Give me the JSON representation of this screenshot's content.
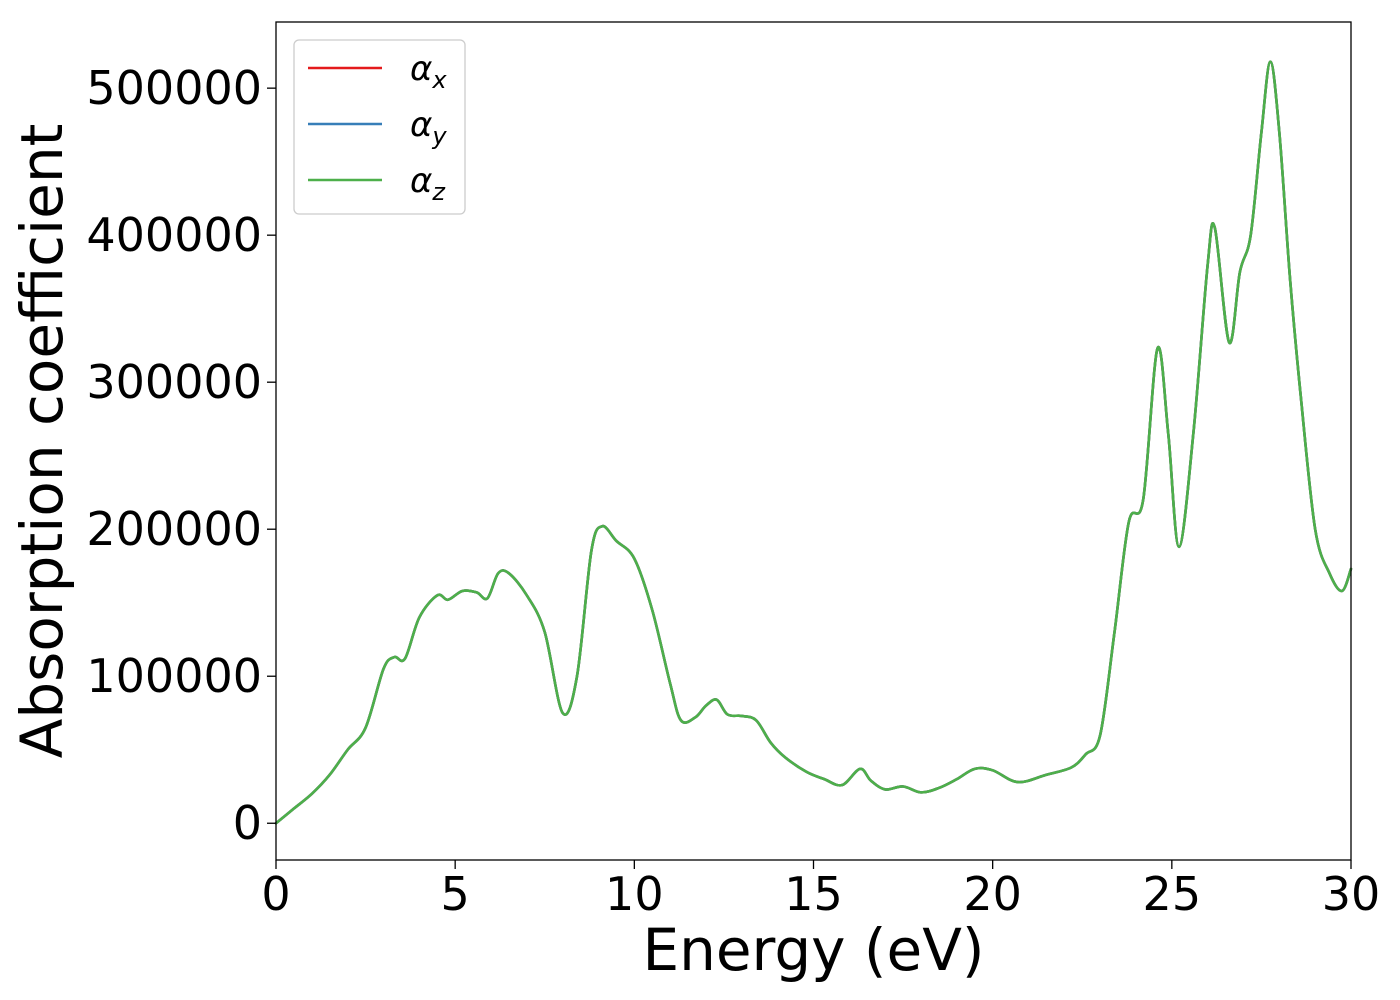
{
  "chart_data": {
    "type": "line",
    "title": "",
    "xlabel": "Energy (eV)",
    "ylabel": "Absorption coefficient",
    "xlim": [
      0,
      30
    ],
    "ylim": [
      -25000,
      545000
    ],
    "xticks": [
      0,
      5,
      10,
      15,
      20,
      25,
      30
    ],
    "xtick_labels": [
      "0",
      "5",
      "10",
      "15",
      "20",
      "25",
      "30"
    ],
    "yticks": [
      0,
      100000,
      200000,
      300000,
      400000,
      500000
    ],
    "ytick_labels": [
      "0",
      "100000",
      "200000",
      "300000",
      "400000",
      "500000"
    ],
    "grid": false,
    "legend_position": "top-left",
    "legend": [
      {
        "symbol": "α",
        "subscript": "x",
        "color": "#e41a1c"
      },
      {
        "symbol": "α",
        "subscript": "y",
        "color": "#377eb8"
      },
      {
        "symbol": "α",
        "subscript": "z",
        "color": "#4daf4a"
      }
    ],
    "x": [
      0,
      0.5,
      1.0,
      1.5,
      2.0,
      2.5,
      3.0,
      3.3,
      3.6,
      4.0,
      4.5,
      4.8,
      5.2,
      5.6,
      5.9,
      6.2,
      6.5,
      7.0,
      7.5,
      8.0,
      8.4,
      8.8,
      9.1,
      9.5,
      10.0,
      10.5,
      11.0,
      11.3,
      11.7,
      12.0,
      12.3,
      12.6,
      13.0,
      13.4,
      13.8,
      14.2,
      14.8,
      15.3,
      15.8,
      16.3,
      16.6,
      17.0,
      17.5,
      18.0,
      18.5,
      19.0,
      19.5,
      20.0,
      20.7,
      21.5,
      22.2,
      22.6,
      23.0,
      23.4,
      23.8,
      24.2,
      24.6,
      24.9,
      25.2,
      25.6,
      26.0,
      26.2,
      26.6,
      26.9,
      27.2,
      27.5,
      27.75,
      28.0,
      28.3,
      28.6,
      29.0,
      29.4,
      29.75,
      30.0
    ],
    "series": [
      {
        "values": [
          0,
          10000,
          20000,
          33000,
          50000,
          65000,
          105000,
          113000,
          112000,
          140000,
          155000,
          152000,
          158000,
          157000,
          153000,
          170000,
          170000,
          155000,
          130000,
          75000,
          100000,
          185000,
          202000,
          192000,
          180000,
          145000,
          95000,
          70000,
          72000,
          80000,
          84000,
          74000,
          73000,
          70000,
          55000,
          45000,
          35000,
          30000,
          26000,
          37000,
          29000,
          23000,
          25000,
          21000,
          24000,
          30000,
          37000,
          36000,
          28000,
          33000,
          38000,
          47000,
          60000,
          130000,
          205000,
          220000,
          323000,
          265000,
          188000,
          265000,
          380000,
          405000,
          327000,
          375000,
          400000,
          470000,
          518000,
          470000,
          370000,
          290000,
          200000,
          170000,
          158000,
          173000
        ]
      },
      {
        "values": [
          0,
          10000,
          20000,
          33000,
          50000,
          65000,
          105000,
          113000,
          112000,
          140000,
          155000,
          152000,
          158000,
          157000,
          153000,
          170000,
          170000,
          155000,
          130000,
          75000,
          100000,
          185000,
          202000,
          192000,
          180000,
          145000,
          95000,
          70000,
          72000,
          80000,
          84000,
          74000,
          73000,
          70000,
          55000,
          45000,
          35000,
          30000,
          26000,
          37000,
          29000,
          23000,
          25000,
          21000,
          24000,
          30000,
          37000,
          36000,
          28000,
          33000,
          38000,
          47000,
          60000,
          130000,
          205000,
          220000,
          323000,
          265000,
          188000,
          265000,
          380000,
          405000,
          327000,
          375000,
          400000,
          470000,
          518000,
          470000,
          370000,
          290000,
          200000,
          170000,
          158000,
          173000
        ]
      },
      {
        "values": [
          0,
          10000,
          20000,
          33000,
          50000,
          65000,
          105000,
          113000,
          112000,
          140000,
          155000,
          152000,
          158000,
          157000,
          153000,
          170000,
          170000,
          155000,
          130000,
          75000,
          100000,
          185000,
          202000,
          192000,
          180000,
          145000,
          95000,
          70000,
          72000,
          80000,
          84000,
          74000,
          73000,
          70000,
          55000,
          45000,
          35000,
          30000,
          26000,
          37000,
          29000,
          23000,
          25000,
          21000,
          24000,
          30000,
          37000,
          36000,
          28000,
          33000,
          38000,
          47000,
          60000,
          130000,
          205000,
          220000,
          323000,
          265000,
          188000,
          265000,
          380000,
          405000,
          327000,
          375000,
          400000,
          470000,
          518000,
          470000,
          370000,
          290000,
          200000,
          170000,
          158000,
          173000
        ]
      }
    ]
  }
}
